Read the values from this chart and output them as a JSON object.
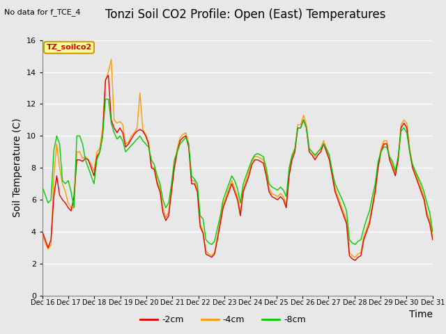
{
  "title": "Tonzi Soil CO2 Profile: Open (East) Temperatures",
  "subtitle": "No data for f_TCE_4",
  "ylabel": "Soil Temperature (C)",
  "xlabel": "Time",
  "legend_label": "TZ_soilco2",
  "ylim": [
    0,
    16
  ],
  "yticks": [
    0,
    2,
    4,
    6,
    8,
    10,
    12,
    14,
    16
  ],
  "xtick_labels": [
    "Dec 16",
    "Dec 17",
    "Dec 18",
    "Dec 19",
    "Dec 20",
    "Dec 21",
    "Dec 22",
    "Dec 23",
    "Dec 24",
    "Dec 25",
    "Dec 26",
    "Dec 27",
    "Dec 28",
    "Dec 29",
    "Dec 30",
    "Dec 31"
  ],
  "series_labels": [
    "-2cm",
    "-4cm",
    "-8cm"
  ],
  "series_colors": [
    "#dd0000",
    "#ff9900",
    "#00cc00"
  ],
  "background_color": "#e8e8e8",
  "plot_bg_color": "#e8e8e8",
  "title_fontsize": 12,
  "axis_fontsize": 10,
  "tick_fontsize": 8,
  "legend_box_color": "#ffff99",
  "legend_box_edge": "#cc9900",
  "t2cm": [
    4.0,
    3.5,
    3.0,
    3.5,
    6.2,
    7.5,
    6.3,
    6.0,
    5.8,
    5.5,
    5.3,
    6.2,
    8.5,
    8.5,
    8.4,
    8.6,
    8.5,
    8.0,
    7.5,
    8.7,
    9.0,
    10.0,
    13.5,
    13.8,
    11.0,
    10.5,
    10.2,
    10.5,
    10.2,
    9.3,
    9.5,
    9.8,
    10.1,
    10.3,
    10.4,
    10.3,
    10.0,
    9.5,
    8.0,
    7.9,
    7.0,
    6.5,
    5.2,
    4.7,
    5.0,
    6.5,
    8.0,
    9.0,
    9.7,
    9.9,
    10.0,
    9.3,
    7.0,
    7.0,
    6.5,
    4.3,
    3.9,
    2.6,
    2.5,
    2.4,
    2.6,
    3.5,
    4.5,
    5.5,
    6.0,
    6.5,
    7.0,
    6.5,
    6.0,
    5.0,
    6.5,
    7.0,
    7.5,
    8.2,
    8.5,
    8.5,
    8.4,
    8.3,
    7.5,
    6.5,
    6.2,
    6.1,
    6.0,
    6.2,
    6.0,
    5.5,
    7.5,
    8.5,
    9.0,
    10.5,
    10.5,
    11.0,
    10.5,
    9.0,
    8.8,
    8.5,
    8.8,
    9.0,
    9.5,
    9.0,
    8.5,
    7.5,
    6.5,
    6.0,
    5.5,
    5.0,
    4.5,
    2.5,
    2.3,
    2.2,
    2.4,
    2.5,
    3.5,
    4.0,
    4.5,
    5.5,
    6.5,
    8.0,
    9.0,
    9.5,
    9.5,
    8.5,
    8.0,
    7.5,
    8.5,
    10.5,
    10.8,
    10.5,
    9.0,
    8.0,
    7.5,
    7.0,
    6.5,
    6.0,
    5.0,
    4.5,
    3.5
  ],
  "t4cm": [
    3.8,
    3.3,
    2.9,
    3.2,
    7.5,
    9.5,
    8.0,
    7.0,
    6.5,
    5.8,
    5.5,
    5.5,
    9.0,
    9.0,
    8.6,
    8.7,
    8.5,
    8.2,
    7.8,
    9.0,
    9.2,
    10.5,
    13.5,
    14.0,
    14.8,
    11.0,
    10.8,
    10.9,
    10.7,
    9.5,
    9.6,
    10.0,
    10.2,
    10.5,
    12.7,
    10.4,
    10.1,
    9.6,
    8.1,
    8.0,
    7.2,
    6.7,
    5.5,
    4.9,
    5.2,
    6.8,
    8.3,
    9.2,
    9.9,
    10.1,
    10.2,
    9.5,
    7.2,
    7.2,
    6.7,
    4.5,
    4.0,
    2.8,
    2.6,
    2.5,
    2.7,
    3.7,
    4.7,
    5.7,
    6.2,
    6.7,
    7.2,
    6.7,
    6.2,
    5.2,
    6.7,
    7.2,
    7.8,
    8.4,
    8.7,
    8.7,
    8.6,
    8.5,
    7.7,
    6.7,
    6.4,
    6.3,
    6.2,
    6.4,
    6.2,
    5.7,
    7.7,
    8.7,
    9.2,
    10.7,
    10.7,
    11.3,
    10.7,
    9.2,
    9.0,
    8.7,
    9.0,
    9.2,
    9.7,
    9.2,
    8.7,
    7.7,
    6.7,
    6.2,
    5.7,
    5.2,
    4.7,
    2.7,
    2.5,
    2.4,
    2.6,
    2.7,
    3.7,
    4.2,
    4.7,
    5.7,
    6.7,
    8.2,
    9.2,
    9.7,
    9.7,
    8.7,
    8.2,
    7.7,
    8.7,
    10.7,
    11.0,
    10.8,
    9.2,
    8.2,
    7.7,
    7.2,
    6.7,
    6.2,
    5.2,
    4.7,
    3.7
  ],
  "t8cm": [
    6.8,
    6.3,
    5.8,
    6.0,
    9.1,
    10.0,
    9.5,
    7.2,
    7.0,
    7.2,
    6.5,
    5.5,
    10.0,
    10.0,
    9.5,
    8.5,
    8.0,
    7.5,
    7.0,
    8.5,
    9.0,
    10.0,
    12.3,
    12.3,
    10.8,
    10.2,
    9.8,
    10.0,
    9.7,
    9.0,
    9.2,
    9.4,
    9.6,
    9.8,
    10.0,
    9.7,
    9.5,
    9.3,
    8.5,
    8.2,
    7.5,
    7.0,
    6.0,
    5.5,
    5.8,
    7.0,
    8.5,
    9.0,
    9.5,
    9.7,
    9.9,
    9.5,
    7.5,
    7.3,
    7.0,
    5.0,
    4.8,
    3.5,
    3.3,
    3.2,
    3.4,
    4.2,
    5.0,
    6.0,
    6.5,
    7.0,
    7.5,
    7.2,
    6.7,
    5.8,
    7.0,
    7.5,
    8.0,
    8.5,
    8.8,
    8.9,
    8.8,
    8.7,
    8.0,
    7.0,
    6.8,
    6.7,
    6.6,
    6.8,
    6.6,
    6.2,
    8.0,
    8.8,
    9.2,
    10.5,
    10.5,
    11.0,
    10.5,
    9.2,
    9.0,
    8.8,
    9.0,
    9.2,
    9.5,
    9.2,
    8.8,
    7.8,
    7.0,
    6.6,
    6.2,
    5.8,
    5.3,
    3.5,
    3.3,
    3.2,
    3.4,
    3.5,
    4.2,
    4.8,
    5.3,
    6.2,
    7.0,
    8.4,
    9.0,
    9.3,
    9.3,
    8.7,
    8.4,
    7.8,
    8.7,
    10.3,
    10.5,
    10.2,
    9.0,
    8.2,
    7.8,
    7.4,
    7.0,
    6.5,
    5.8,
    5.2,
    4.0
  ]
}
